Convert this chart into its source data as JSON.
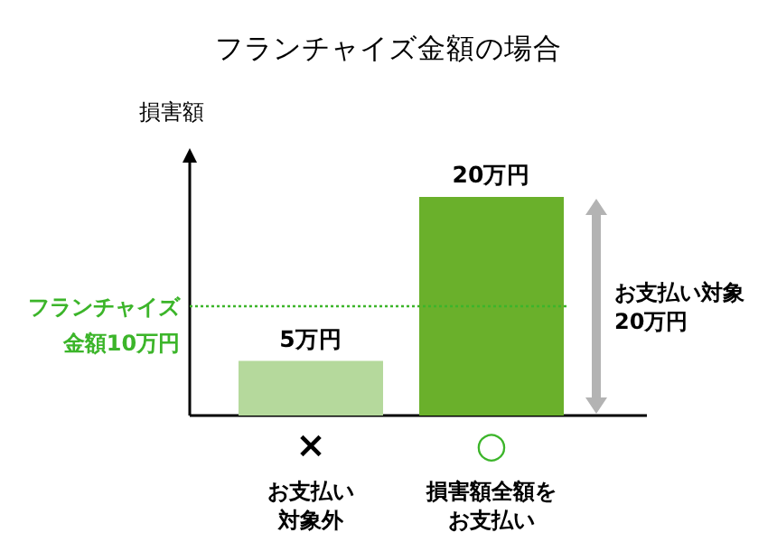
{
  "chart_data": {
    "type": "bar",
    "title": "フランチャイズ金額の場合",
    "ylabel": "損害額",
    "categories": [
      "お支払い対象外",
      "損害額全額をお支払い"
    ],
    "values": [
      5,
      20
    ],
    "colors": [
      "#b5d99c",
      "#6ab02b"
    ],
    "value_labels": [
      "5万円",
      "20万円"
    ],
    "ref_lines": [
      {
        "axis": "y",
        "value": 10,
        "label": "フランチャイズ金額10万円",
        "color": "#3cb52a",
        "line_style": "dotted"
      }
    ],
    "annotations": [
      "×",
      "○",
      "お支払い対象20万円"
    ]
  }
}
